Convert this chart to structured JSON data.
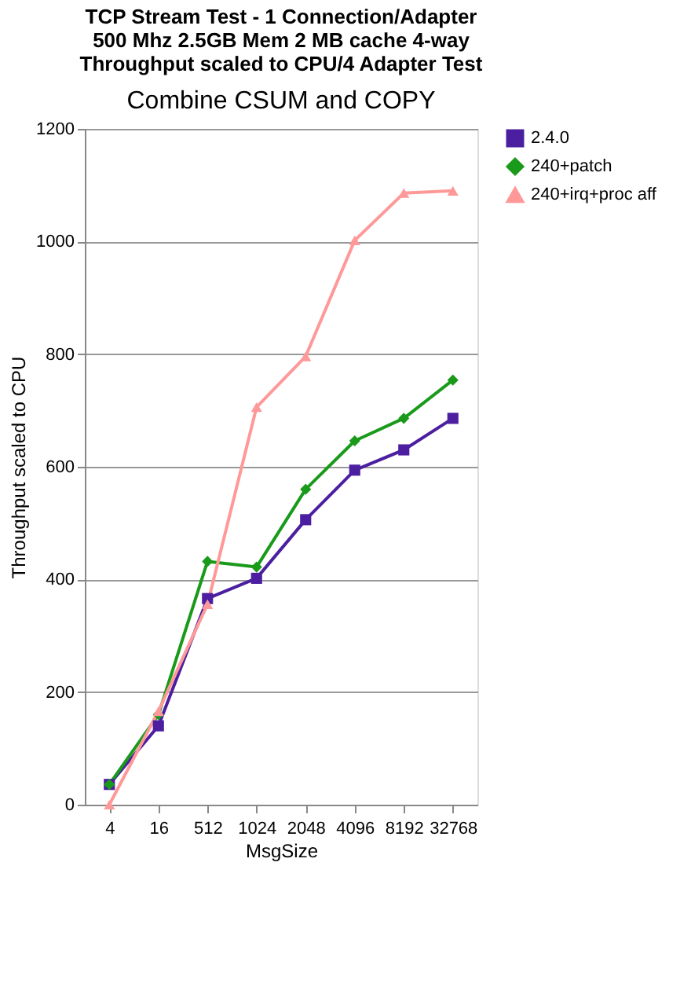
{
  "chart_data": {
    "type": "line",
    "title": [
      "TCP Stream Test - 1 Connection/Adapter",
      "500 Mhz 2.5GB Mem 2 MB cache  4-way",
      "Throughput scaled to CPU/4 Adapter Test"
    ],
    "annotations": [
      "Combine CSUM and COPY"
    ],
    "xlabel": "MsgSize",
    "ylabel": "Throughput scaled to CPU",
    "categories": [
      "4",
      "16",
      "512",
      "1024",
      "2048",
      "4096",
      "8192",
      "32768"
    ],
    "series": [
      {
        "name": "2.4.0",
        "color": "#4b1fa0",
        "marker": "square",
        "values": [
          36,
          140,
          366,
          402,
          506,
          594,
          630,
          686
        ]
      },
      {
        "name": "240+patch",
        "color": "#1a9a1a",
        "marker": "diamond",
        "values": [
          36,
          160,
          432,
          422,
          560,
          646,
          686,
          754
        ]
      },
      {
        "name": "240+irq+proc aff",
        "color": "#ff9999",
        "marker": "triangle",
        "values": [
          0,
          166,
          356,
          706,
          796,
          1002,
          1086,
          1090
        ]
      }
    ],
    "ylim": [
      0,
      1200
    ],
    "yticks": [
      0,
      200,
      400,
      600,
      800,
      1000,
      1200
    ],
    "grid": "y",
    "legend": "right"
  }
}
